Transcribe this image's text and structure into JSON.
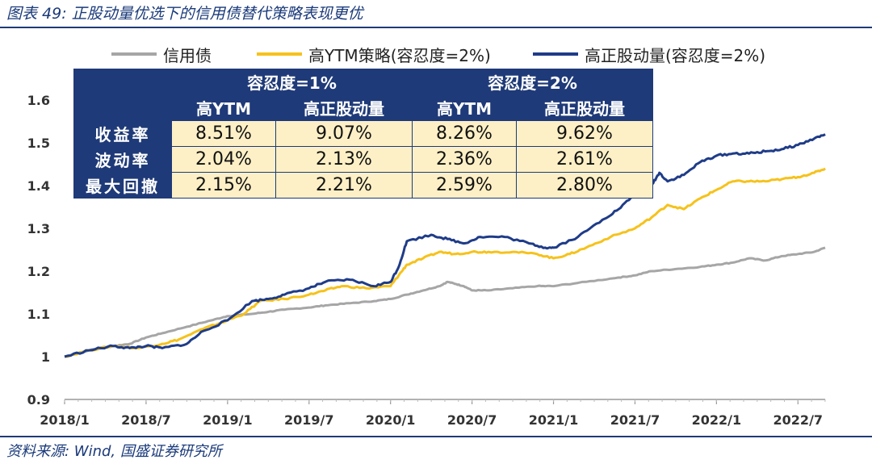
{
  "title": "图表 49:  正股动量优选下的信用债替代策略表现更优",
  "source": "资料来源:  Wind, 国盛证券研究所",
  "colors": {
    "credit": "#a6a6a6",
    "ytm": "#f6c21b",
    "momentum": "#1f3c88",
    "accent": "#1f3a78",
    "cell": "#fdf0c6"
  },
  "legend": [
    {
      "label": "信用债",
      "color": "#a6a6a6"
    },
    {
      "label": "高YTM策略(容忍度=2%)",
      "color": "#f6c21b"
    },
    {
      "label": "高正股动量(容忍度=2%)",
      "color": "#1f3c88"
    }
  ],
  "table": {
    "groups": [
      "容忍度=1%",
      "容忍度=2%"
    ],
    "subheaders": [
      "高YTM",
      "高正股动量",
      "高YTM",
      "高正股动量"
    ],
    "rows": [
      {
        "label": "收益率",
        "values": [
          "8.51%",
          "9.07%",
          "8.26%",
          "9.62%"
        ]
      },
      {
        "label": "波动率",
        "values": [
          "2.04%",
          "2.13%",
          "2.36%",
          "2.61%"
        ]
      },
      {
        "label": "最大回撤",
        "values": [
          "2.15%",
          "2.21%",
          "2.59%",
          "2.80%"
        ]
      }
    ]
  },
  "chart_data": {
    "type": "line",
    "xlim": [
      2018.0,
      2022.667
    ],
    "ylim": [
      0.9,
      1.6
    ],
    "yticks": [
      0.9,
      1.0,
      1.1,
      1.2,
      1.3,
      1.4,
      1.5,
      1.6
    ],
    "ytick_labels": [
      "0.9",
      "1",
      "1.1",
      "1.2",
      "1.3",
      "1.4",
      "1.5",
      "1.6"
    ],
    "xticks": [
      2018.0,
      2018.5,
      2019.0,
      2019.5,
      2020.0,
      2020.5,
      2021.0,
      2021.5,
      2022.0,
      2022.5
    ],
    "xtick_labels": [
      "2018/1",
      "2018/7",
      "2019/1",
      "2019/7",
      "2020/1",
      "2020/7",
      "2021/1",
      "2021/7",
      "2022/1",
      "2022/7"
    ],
    "grid": false,
    "legend_position": "top",
    "series": [
      {
        "name": "信用债",
        "x": [
          2018.0,
          2018.15,
          2018.3,
          2018.4,
          2018.5,
          2018.6,
          2018.75,
          2018.9,
          2019.0,
          2019.15,
          2019.25,
          2019.35,
          2019.5,
          2019.6,
          2019.75,
          2019.9,
          2020.0,
          2020.1,
          2020.2,
          2020.3,
          2020.35,
          2020.4,
          2020.45,
          2020.5,
          2020.6,
          2020.75,
          2020.9,
          2021.0,
          2021.2,
          2021.4,
          2021.5,
          2021.6,
          2021.75,
          2021.9,
          2022.0,
          2022.1,
          2022.2,
          2022.3,
          2022.4,
          2022.5,
          2022.6,
          2022.667
        ],
        "y": [
          1.0,
          1.015,
          1.025,
          1.03,
          1.045,
          1.055,
          1.07,
          1.085,
          1.095,
          1.1,
          1.105,
          1.11,
          1.115,
          1.12,
          1.125,
          1.13,
          1.135,
          1.145,
          1.155,
          1.165,
          1.175,
          1.17,
          1.165,
          1.155,
          1.155,
          1.16,
          1.165,
          1.165,
          1.175,
          1.185,
          1.19,
          1.2,
          1.205,
          1.21,
          1.215,
          1.22,
          1.23,
          1.225,
          1.235,
          1.24,
          1.245,
          1.255
        ]
      },
      {
        "name": "高YTM策略(容忍度=2%)",
        "x": [
          2018.0,
          2018.15,
          2018.3,
          2018.45,
          2018.6,
          2018.7,
          2018.85,
          2019.0,
          2019.1,
          2019.2,
          2019.35,
          2019.5,
          2019.6,
          2019.7,
          2019.85,
          2020.0,
          2020.05,
          2020.1,
          2020.2,
          2020.3,
          2020.4,
          2020.5,
          2020.6,
          2020.75,
          2020.9,
          2021.0,
          2021.1,
          2021.2,
          2021.35,
          2021.5,
          2021.6,
          2021.7,
          2021.8,
          2021.9,
          2022.0,
          2022.1,
          2022.2,
          2022.3,
          2022.4,
          2022.5,
          2022.6,
          2022.667
        ],
        "y": [
          1.0,
          1.015,
          1.025,
          1.02,
          1.03,
          1.04,
          1.065,
          1.085,
          1.1,
          1.13,
          1.135,
          1.145,
          1.155,
          1.165,
          1.16,
          1.165,
          1.19,
          1.215,
          1.23,
          1.245,
          1.24,
          1.245,
          1.245,
          1.245,
          1.24,
          1.23,
          1.24,
          1.255,
          1.28,
          1.3,
          1.325,
          1.355,
          1.345,
          1.37,
          1.39,
          1.41,
          1.41,
          1.41,
          1.415,
          1.42,
          1.43,
          1.44
        ]
      },
      {
        "name": "高正股动量(容忍度=2%)",
        "x": [
          2018.0,
          2018.15,
          2018.3,
          2018.4,
          2018.5,
          2018.6,
          2018.75,
          2018.85,
          2019.0,
          2019.15,
          2019.25,
          2019.35,
          2019.5,
          2019.6,
          2019.75,
          2019.9,
          2020.0,
          2020.05,
          2020.1,
          2020.25,
          2020.35,
          2020.45,
          2020.55,
          2020.7,
          2020.85,
          2020.95,
          2021.0,
          2021.15,
          2021.3,
          2021.4,
          2021.5,
          2021.6,
          2021.65,
          2021.7,
          2021.8,
          2021.9,
          2022.0,
          2022.1,
          2022.2,
          2022.3,
          2022.4,
          2022.5,
          2022.6,
          2022.667
        ],
        "y": [
          1.0,
          1.015,
          1.025,
          1.02,
          1.025,
          1.02,
          1.03,
          1.06,
          1.085,
          1.13,
          1.135,
          1.145,
          1.16,
          1.175,
          1.18,
          1.165,
          1.175,
          1.21,
          1.27,
          1.285,
          1.275,
          1.265,
          1.28,
          1.28,
          1.265,
          1.255,
          1.255,
          1.28,
          1.32,
          1.345,
          1.38,
          1.4,
          1.43,
          1.41,
          1.425,
          1.455,
          1.47,
          1.475,
          1.475,
          1.48,
          1.485,
          1.495,
          1.51,
          1.52
        ]
      }
    ]
  }
}
